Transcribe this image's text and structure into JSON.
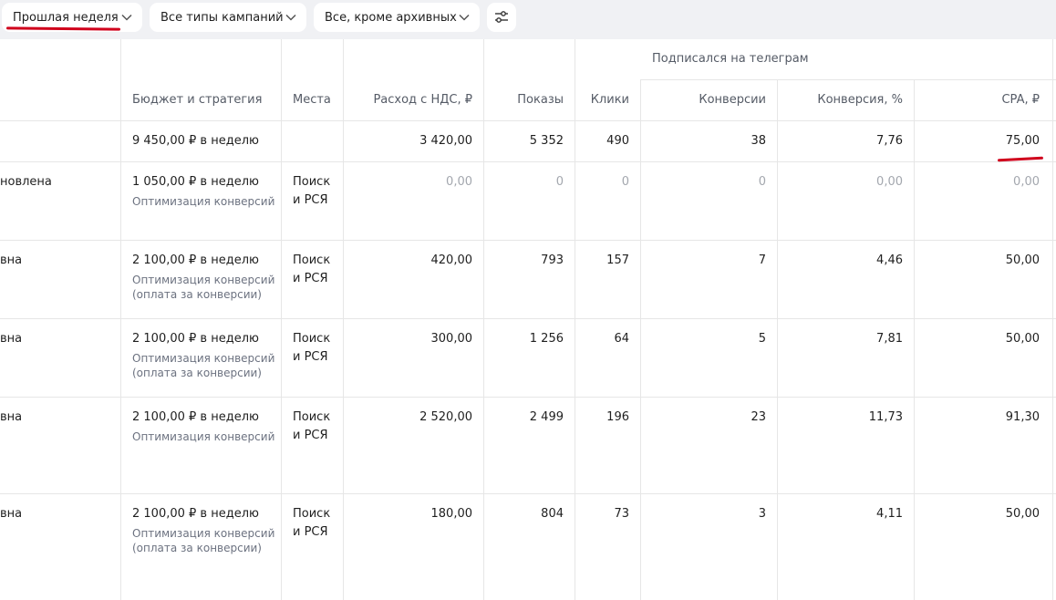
{
  "filters": {
    "period": "Прошлая неделя",
    "campaign_types": "Все типы кампаний",
    "status": "Все, кроме архивных"
  },
  "table": {
    "group_header": "Подписался на телеграм",
    "columns": {
      "budget": "Бюджет и стратегия",
      "places": "Места",
      "spend": "Расход с НДС, ₽",
      "impressions": "Показы",
      "clicks": "Клики",
      "conversions": "Конверсии",
      "conv_rate": "Конверсия, %",
      "cpa": "CPA, ₽"
    },
    "total": {
      "budget": "9 450,00 ₽ в неделю",
      "spend": "3 420,00",
      "impressions": "5 352",
      "clicks": "490",
      "conversions": "38",
      "conv_rate": "7,76",
      "cpa": "75,00"
    },
    "rows": [
      {
        "status": "новлена",
        "budget": "1 050,00 ₽ в неделю",
        "strategy": "Оптимизация конверсий",
        "strategy_note": "",
        "places_1": "Поиск",
        "places_2": "и РСЯ",
        "spend": "0,00",
        "impressions": "0",
        "clicks": "0",
        "conversions": "0",
        "conv_rate": "0,00",
        "cpa": "0,00"
      },
      {
        "status": "вна",
        "budget": "2 100,00 ₽ в неделю",
        "strategy": "Оптимизация конверсий",
        "strategy_note": "(оплата за конверсии)",
        "places_1": "Поиск",
        "places_2": "и РСЯ",
        "spend": "420,00",
        "impressions": "793",
        "clicks": "157",
        "conversions": "7",
        "conv_rate": "4,46",
        "cpa": "50,00"
      },
      {
        "status": "вна",
        "budget": "2 100,00 ₽ в неделю",
        "strategy": "Оптимизация конверсий",
        "strategy_note": "(оплата за конверсии)",
        "places_1": "Поиск",
        "places_2": "и РСЯ",
        "spend": "300,00",
        "impressions": "1 256",
        "clicks": "64",
        "conversions": "5",
        "conv_rate": "7,81",
        "cpa": "50,00"
      },
      {
        "status": "вна",
        "budget": "2 100,00 ₽ в неделю",
        "strategy": "Оптимизация конверсий",
        "strategy_note": "",
        "places_1": "Поиск",
        "places_2": "и РСЯ",
        "spend": "2 520,00",
        "impressions": "2 499",
        "clicks": "196",
        "conversions": "23",
        "conv_rate": "11,73",
        "cpa": "91,30"
      },
      {
        "status": "вна",
        "budget": "2 100,00 ₽ в неделю",
        "strategy": "Оптимизация конверсий",
        "strategy_note": "(оплата за конверсии)",
        "places_1": "Поиск",
        "places_2": "и РСЯ",
        "spend": "180,00",
        "impressions": "804",
        "clicks": "73",
        "conversions": "3",
        "conv_rate": "4,11",
        "cpa": "50,00"
      }
    ]
  },
  "colors": {
    "toolbar_bg": "#f0f1f4",
    "annotation_red": "#d0001c",
    "muted_value": "#a3a7ae"
  }
}
